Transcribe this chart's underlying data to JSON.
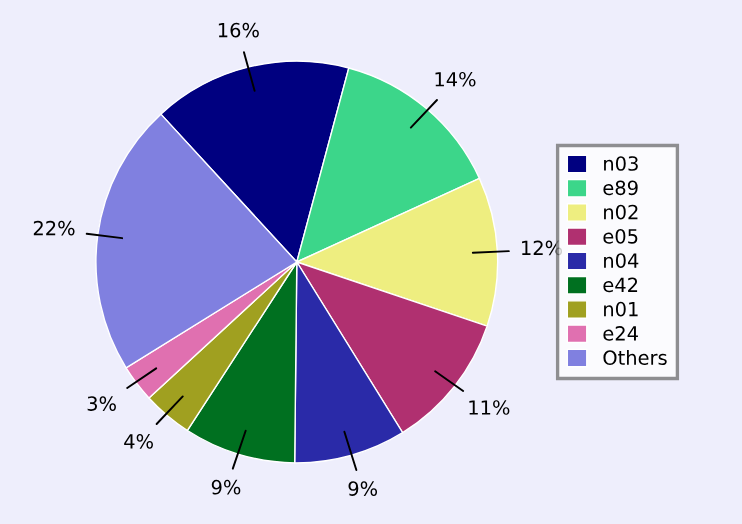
{
  "chart_data": {
    "type": "pie",
    "categories": [
      "n03",
      "e89",
      "n02",
      "e05",
      "n04",
      "e42",
      "n01",
      "e24",
      "Others"
    ],
    "values": [
      16,
      14,
      12,
      11,
      9,
      9,
      4,
      3,
      22
    ],
    "colors": [
      "#000080",
      "#3cd68a",
      "#eeee80",
      "#b03070",
      "#2a2aa8",
      "#007020",
      "#a0a020",
      "#e070b0",
      "#8080e0"
    ],
    "value_labels": [
      "16%",
      "14%",
      "12%",
      "11%",
      "9%",
      "9%",
      "4%",
      "3%",
      "22%"
    ],
    "legend": "right"
  }
}
